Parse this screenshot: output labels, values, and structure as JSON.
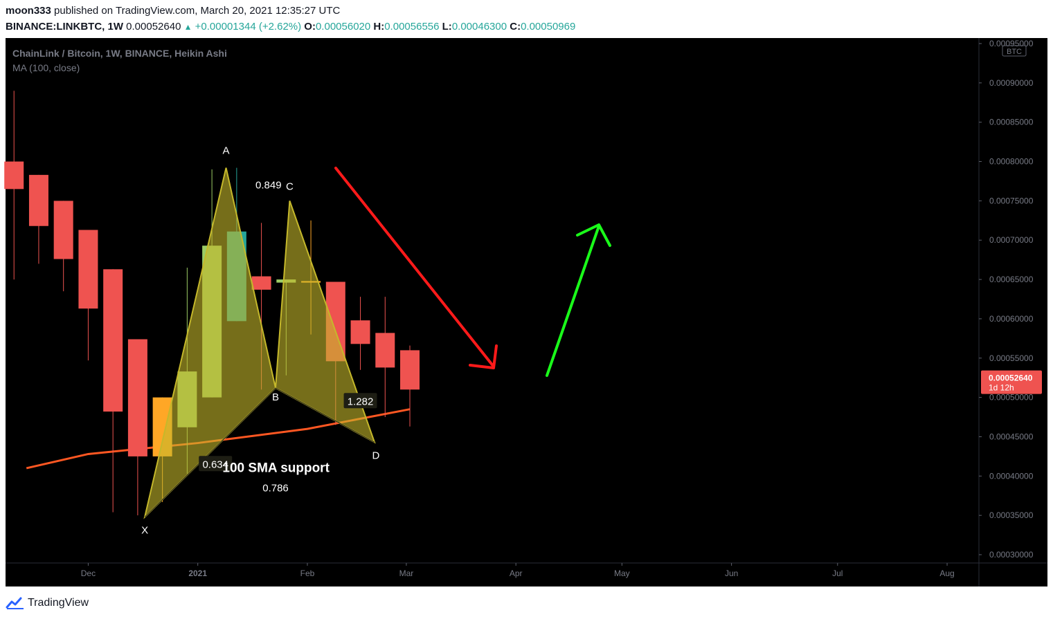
{
  "header": {
    "author": "moon333",
    "published_text": "published on TradingView.com, March 20, 2021 12:35:27 UTC",
    "symbol": "BINANCE:LINKBTC, 1W",
    "price": "0.00052640",
    "change": "+0.00001344 (+2.62%)",
    "o_label": "O:",
    "o_value": "0.00056020",
    "h_label": "H:",
    "h_value": "0.00056556",
    "l_label": "L:",
    "l_value": "0.00046300",
    "c_label": "C:",
    "c_value": "0.00050969"
  },
  "legend": {
    "title": "ChainLink / Bitcoin, 1W, BINANCE, Heikin Ashi",
    "indicator": "MA (100, close)"
  },
  "footer": {
    "brand": "TradingView"
  },
  "colors": {
    "bear": "#ef5350",
    "bull_light": "#9ccc65",
    "teal": "#26a69a",
    "orange": "#ffa726",
    "ma_line": "#ff5722",
    "pattern_fill": "#c5b82b",
    "arrow_red": "#ff1a1a",
    "arrow_green": "#1aff1a",
    "background": "#000000",
    "axis_text": "#787b86"
  },
  "chart_data": {
    "type": "candlestick",
    "chart_style": "Heikin Ashi",
    "currency_badge": "BTC",
    "y_axis": {
      "min": 0.0003,
      "max": 0.00095,
      "ticks": [
        "0.00095000",
        "0.00090000",
        "0.00085000",
        "0.00080000",
        "0.00075000",
        "0.00070000",
        "0.00065000",
        "0.00060000",
        "0.00055000",
        "0.00050000",
        "0.00045000",
        "0.00040000",
        "0.00035000",
        "0.00030000"
      ]
    },
    "x_axis": {
      "min": "2020-11-08",
      "max": "2021-08-10",
      "ticks": [
        {
          "label": "Dec",
          "date": "2020-12-01"
        },
        {
          "label": "2021",
          "date": "2021-01-01",
          "bold": true
        },
        {
          "label": "Feb",
          "date": "2021-02-01"
        },
        {
          "label": "Mar",
          "date": "2021-03-01"
        },
        {
          "label": "Apr",
          "date": "2021-04-01"
        },
        {
          "label": "May",
          "date": "2021-05-01"
        },
        {
          "label": "Jun",
          "date": "2021-06-01"
        },
        {
          "label": "Jul",
          "date": "2021-07-01"
        },
        {
          "label": "Aug",
          "date": "2021-08-01"
        }
      ]
    },
    "candles": [
      {
        "date": "2020-11-10",
        "open": 0.0008,
        "close": 0.000765,
        "high": 0.00089,
        "low": 0.00065,
        "color": "bear"
      },
      {
        "date": "2020-11-17",
        "open": 0.000783,
        "close": 0.000718,
        "high": 0.000783,
        "low": 0.00067,
        "color": "bear"
      },
      {
        "date": "2020-11-24",
        "open": 0.00075,
        "close": 0.000676,
        "high": 0.00075,
        "low": 0.000635,
        "color": "bear"
      },
      {
        "date": "2020-12-01",
        "open": 0.000713,
        "close": 0.000613,
        "high": 0.000713,
        "low": 0.000547,
        "color": "bear"
      },
      {
        "date": "2020-12-08",
        "open": 0.000663,
        "close": 0.000482,
        "high": 0.000663,
        "low": 0.000354,
        "color": "bear"
      },
      {
        "date": "2020-12-15",
        "open": 0.000574,
        "close": 0.000425,
        "high": 0.000574,
        "low": 0.00035,
        "color": "bear"
      },
      {
        "date": "2020-12-22",
        "open": 0.000425,
        "close": 0.0005,
        "high": 0.0005,
        "low": 0.000367,
        "color": "orange"
      },
      {
        "date": "2020-12-29",
        "open": 0.000462,
        "close": 0.000533,
        "high": 0.000665,
        "low": 0.000403,
        "color": "bull_light"
      },
      {
        "date": "2021-01-05",
        "open": 0.0005,
        "close": 0.000693,
        "high": 0.00079,
        "low": 0.0005,
        "color": "bull_light"
      },
      {
        "date": "2021-01-12",
        "open": 0.000597,
        "close": 0.000711,
        "high": 0.000792,
        "low": 0.000597,
        "color": "teal"
      },
      {
        "date": "2021-01-19",
        "open": 0.000654,
        "close": 0.000637,
        "high": 0.000722,
        "low": 0.00051,
        "color": "bear"
      },
      {
        "date": "2021-01-26",
        "open": 0.000646,
        "close": 0.00065,
        "high": 0.00065,
        "low": 0.000528,
        "color": "bull_light"
      },
      {
        "date": "2021-02-02",
        "open": 0.000648,
        "close": 0.000646,
        "high": 0.000725,
        "low": 0.00058,
        "color": "orange"
      },
      {
        "date": "2021-02-09",
        "open": 0.000647,
        "close": 0.000546,
        "high": 0.000647,
        "low": 0.000465,
        "color": "bear"
      },
      {
        "date": "2021-02-16",
        "open": 0.000598,
        "close": 0.000568,
        "high": 0.000628,
        "low": 0.000535,
        "color": "bear"
      },
      {
        "date": "2021-02-23",
        "open": 0.000582,
        "close": 0.000538,
        "high": 0.000628,
        "low": 0.000475,
        "color": "bear"
      },
      {
        "date": "2021-03-02",
        "open": 0.00056,
        "close": 0.00051,
        "high": 0.000566,
        "low": 0.000463,
        "color": "bear"
      }
    ],
    "ma_100": [
      {
        "date": "2020-11-10",
        "value": 0.00041
      },
      {
        "date": "2020-12-01",
        "value": 0.000428
      },
      {
        "date": "2021-01-01",
        "value": 0.000442
      },
      {
        "date": "2021-02-01",
        "value": 0.00046
      },
      {
        "date": "2021-03-02",
        "value": 0.000485
      }
    ],
    "pattern": {
      "points": [
        {
          "label": "X",
          "date": "2020-12-17",
          "price": 0.000348
        },
        {
          "label": "A",
          "date": "2021-01-09",
          "price": 0.000792
        },
        {
          "label": "B",
          "date": "2021-01-23",
          "price": 0.000512
        },
        {
          "label": "C",
          "date": "2021-01-27",
          "price": 0.00075
        },
        {
          "label": "D",
          "date": "2021-02-20",
          "price": 0.000443
        }
      ],
      "ratios": [
        {
          "text": "0.849",
          "date": "2021-01-21",
          "price": 0.00077
        },
        {
          "text": "0.634",
          "date": "2021-01-06",
          "price": 0.000415,
          "boxed": true
        },
        {
          "text": "1.282",
          "date": "2021-02-16",
          "price": 0.000495,
          "boxed": true
        },
        {
          "text": "0.786",
          "date": "2021-01-23",
          "price": 0.000385
        }
      ]
    },
    "annotations": [
      {
        "text": "100 SMA support",
        "date": "2021-01-08",
        "price": 0.000415
      }
    ],
    "current_price": {
      "value": "0.00052640",
      "countdown": "1d 12h",
      "price": 0.0005264
    }
  }
}
